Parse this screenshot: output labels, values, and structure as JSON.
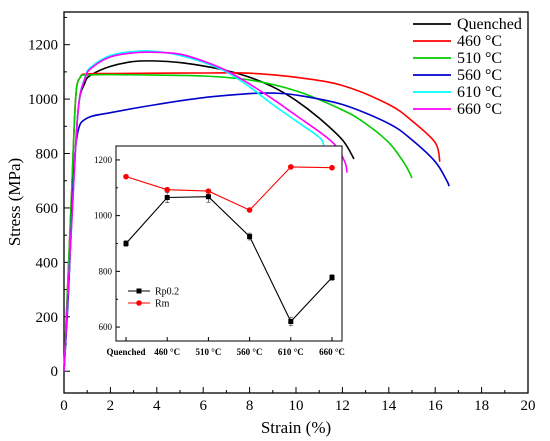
{
  "chart_data": [
    {
      "type": "line",
      "xlabel": "Strain (%)",
      "ylabel": "Stress (MPa)",
      "xlim": [
        0,
        20
      ],
      "ylim": [
        -80,
        1320
      ],
      "xticks": [
        0,
        2,
        4,
        6,
        8,
        10,
        12,
        14,
        16,
        18,
        20
      ],
      "yticks": [
        0,
        200,
        400,
        600,
        800,
        1000,
        1200
      ],
      "grid": false,
      "legend_position": "top-right",
      "series": [
        {
          "name": "Quenched",
          "color": "#000000",
          "points": [
            [
              0,
              0
            ],
            [
              0.3,
              500
            ],
            [
              0.6,
              950
            ],
            [
              0.9,
              1060
            ],
            [
              1.2,
              1090
            ],
            [
              2,
              1120
            ],
            [
              3,
              1138
            ],
            [
              4,
              1140
            ],
            [
              5,
              1134
            ],
            [
              6,
              1122
            ],
            [
              7,
              1105
            ],
            [
              8,
              1080
            ],
            [
              9,
              1045
            ],
            [
              10,
              995
            ],
            [
              11,
              930
            ],
            [
              12,
              850
            ],
            [
              12.5,
              780
            ]
          ]
        },
        {
          "name": "460 °C",
          "color": "#ff0000",
          "points": [
            [
              0,
              0
            ],
            [
              0.3,
              600
            ],
            [
              0.5,
              1000
            ],
            [
              0.7,
              1080
            ],
            [
              1,
              1092
            ],
            [
              2,
              1094
            ],
            [
              4,
              1095
            ],
            [
              6,
              1096
            ],
            [
              8,
              1095
            ],
            [
              10,
              1080
            ],
            [
              12,
              1050
            ],
            [
              14,
              980
            ],
            [
              15,
              920
            ],
            [
              16,
              840
            ],
            [
              16.2,
              770
            ]
          ]
        },
        {
          "name": "510 °C",
          "color": "#00cc00",
          "points": [
            [
              0,
              0
            ],
            [
              0.3,
              600
            ],
            [
              0.5,
              1000
            ],
            [
              0.7,
              1080
            ],
            [
              1,
              1088
            ],
            [
              2,
              1090
            ],
            [
              4,
              1088
            ],
            [
              6,
              1085
            ],
            [
              8,
              1070
            ],
            [
              10,
              1030
            ],
            [
              12,
              960
            ],
            [
              13,
              910
            ],
            [
              14,
              840
            ],
            [
              14.7,
              760
            ],
            [
              15,
              710
            ]
          ]
        },
        {
          "name": "560 °C",
          "color": "#0000cc",
          "points": [
            [
              0,
              0
            ],
            [
              0.2,
              300
            ],
            [
              0.4,
              700
            ],
            [
              0.6,
              880
            ],
            [
              1,
              930
            ],
            [
              2,
              950
            ],
            [
              4,
              980
            ],
            [
              6,
              1005
            ],
            [
              8,
              1020
            ],
            [
              9,
              1022
            ],
            [
              10,
              1015
            ],
            [
              12,
              980
            ],
            [
              14,
              910
            ],
            [
              15,
              850
            ],
            [
              16,
              770
            ],
            [
              16.5,
              700
            ],
            [
              16.6,
              680
            ]
          ]
        },
        {
          "name": "610 °C",
          "color": "#00ffff",
          "points": [
            [
              0,
              0
            ],
            [
              0.3,
              500
            ],
            [
              0.6,
              950
            ],
            [
              0.9,
              1080
            ],
            [
              1.2,
              1120
            ],
            [
              2,
              1160
            ],
            [
              3,
              1175
            ],
            [
              4,
              1175
            ],
            [
              5,
              1160
            ],
            [
              6,
              1135
            ],
            [
              7,
              1100
            ],
            [
              8,
              1045
            ],
            [
              9,
              980
            ],
            [
              10,
              920
            ],
            [
              11,
              860
            ],
            [
              11.2,
              830
            ]
          ]
        },
        {
          "name": "660 °C",
          "color": "#ff00ff",
          "points": [
            [
              0,
              0
            ],
            [
              0.3,
              500
            ],
            [
              0.6,
              950
            ],
            [
              0.9,
              1075
            ],
            [
              1.2,
              1115
            ],
            [
              2,
              1155
            ],
            [
              3,
              1170
            ],
            [
              4,
              1172
            ],
            [
              5,
              1165
            ],
            [
              6,
              1140
            ],
            [
              7,
              1105
            ],
            [
              8,
              1055
            ],
            [
              9,
              1000
            ],
            [
              10,
              940
            ],
            [
              11,
              880
            ],
            [
              11.7,
              830
            ],
            [
              12.1,
              770
            ],
            [
              12.2,
              730
            ]
          ]
        }
      ]
    },
    {
      "type": "line",
      "categories": [
        "Quenched",
        "460 °C",
        "510 °C",
        "560 °C",
        "610 °C",
        "660 °C"
      ],
      "ylim": [
        550,
        1250
      ],
      "yticks": [
        600,
        800,
        1000,
        1200
      ],
      "legend_position": "bottom-left",
      "series": [
        {
          "name": "Rp0.2",
          "color": "#000000",
          "values": [
            900,
            1065,
            1068,
            925,
            620,
            778
          ],
          "errors": [
            10,
            18,
            20,
            12,
            15,
            10
          ]
        },
        {
          "name": "Rm",
          "color": "#ff0000",
          "values": [
            1140,
            1093,
            1088,
            1020,
            1175,
            1172
          ],
          "errors": [
            5,
            6,
            6,
            5,
            6,
            5
          ]
        }
      ]
    }
  ]
}
